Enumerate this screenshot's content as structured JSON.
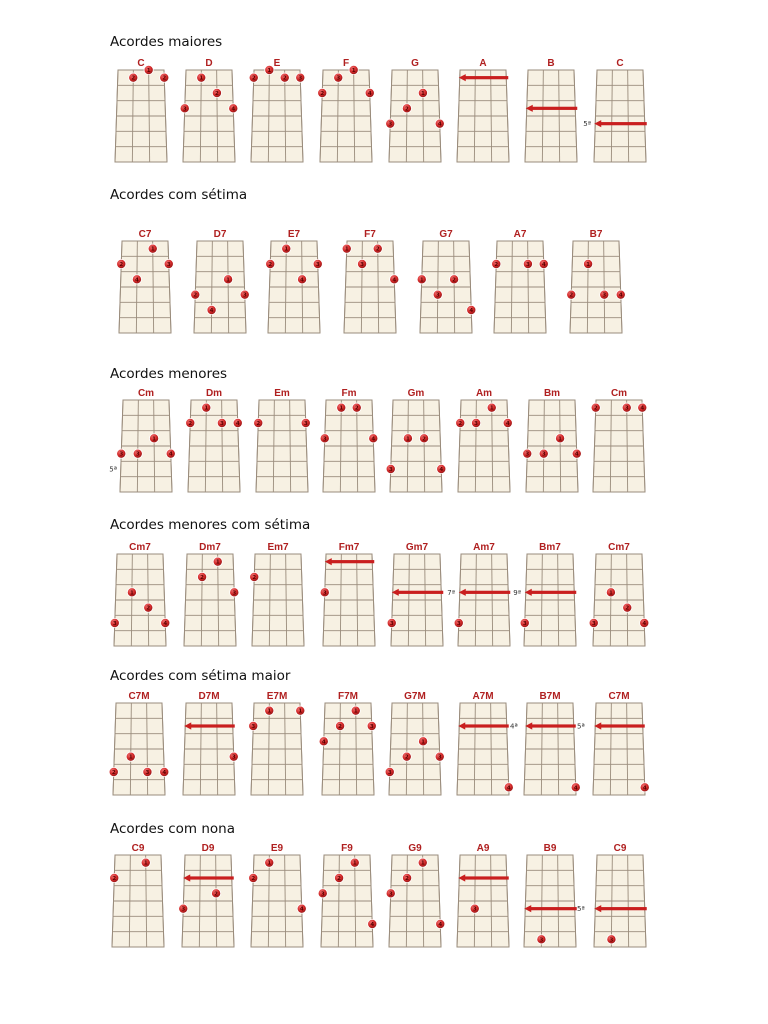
{
  "colors": {
    "board": "#f7f1e3",
    "line": "#9a8c7c",
    "dot": "#d42a2a",
    "dot_dark": "#8f1313",
    "dot_light": "#f07070",
    "bar": "#c91f1f",
    "chord_name": "#b02020",
    "heading": "#111111"
  },
  "icons": {
    "finger": "red-circle",
    "barre": "red-arrow"
  },
  "sections": [
    {
      "title": "Acordes maiores",
      "chords": [
        {
          "name": "C",
          "fingers": [
            {
              "s": 2,
              "f": 0,
              "n": "2"
            },
            {
              "s": 3,
              "f": -1,
              "n": "1"
            },
            {
              "s": 4,
              "f": 0,
              "n": "2"
            }
          ]
        },
        {
          "name": "D",
          "fingers": [
            {
              "s": 2,
              "f": 0,
              "n": "1"
            },
            {
              "s": 3,
              "f": 1,
              "n": "2"
            },
            {
              "s": 1,
              "f": 2,
              "n": "3"
            },
            {
              "s": 4,
              "f": 2,
              "n": "4"
            }
          ]
        },
        {
          "name": "E",
          "fingers": [
            {
              "s": 1,
              "f": 0,
              "n": "2"
            },
            {
              "s": 2,
              "f": -1,
              "n": "1"
            },
            {
              "s": 3,
              "f": 0,
              "n": "2"
            },
            {
              "s": 4,
              "f": 0,
              "n": "3"
            }
          ]
        },
        {
          "name": "F",
          "fingers": [
            {
              "s": 1,
              "f": 1,
              "n": "2"
            },
            {
              "s": 2,
              "f": 0,
              "n": "3"
            },
            {
              "s": 3,
              "f": -1,
              "n": "1"
            },
            {
              "s": 4,
              "f": 1,
              "n": "4"
            }
          ]
        },
        {
          "name": "G",
          "fingers": [
            {
              "s": 3,
              "f": 1,
              "n": "1"
            },
            {
              "s": 2,
              "f": 2,
              "n": "2"
            },
            {
              "s": 1,
              "f": 3,
              "n": "3"
            },
            {
              "s": 4,
              "f": 3,
              "n": "4"
            }
          ]
        },
        {
          "name": "A",
          "bar": 0,
          "fingers": []
        },
        {
          "name": "B",
          "bar": 2,
          "fingers": []
        },
        {
          "name": "C",
          "fret_label": "5ª",
          "bar": 3,
          "fingers": []
        }
      ]
    },
    {
      "title": "Acordes com sétima",
      "chords": [
        {
          "name": "C7",
          "fingers": [
            {
              "s": 3,
              "f": 0,
              "n": "1"
            },
            {
              "s": 1,
              "f": 1,
              "n": "2"
            },
            {
              "s": 4,
              "f": 1,
              "n": "3"
            },
            {
              "s": 2,
              "f": 2,
              "n": "4"
            }
          ]
        },
        {
          "name": "D7",
          "fingers": [
            {
              "s": 3,
              "f": 2,
              "n": "1"
            },
            {
              "s": 1,
              "f": 3,
              "n": "2"
            },
            {
              "s": 4,
              "f": 3,
              "n": "3"
            },
            {
              "s": 2,
              "f": 4,
              "n": "4"
            }
          ]
        },
        {
          "name": "E7",
          "fingers": [
            {
              "s": 2,
              "f": 0,
              "n": "1"
            },
            {
              "s": 1,
              "f": 1,
              "n": "2"
            },
            {
              "s": 4,
              "f": 1,
              "n": "3"
            },
            {
              "s": 3,
              "f": 2,
              "n": "4"
            }
          ]
        },
        {
          "name": "F7",
          "fingers": [
            {
              "s": 1,
              "f": 0,
              "n": "1"
            },
            {
              "s": 3,
              "f": 0,
              "n": "2"
            },
            {
              "s": 2,
              "f": 1,
              "n": "3"
            },
            {
              "s": 4,
              "f": 2,
              "n": "4"
            }
          ]
        },
        {
          "name": "G7",
          "fingers": [
            {
              "s": 1,
              "f": 2,
              "n": "1"
            },
            {
              "s": 3,
              "f": 2,
              "n": "2"
            },
            {
              "s": 2,
              "f": 3,
              "n": "3"
            },
            {
              "s": 4,
              "f": 4,
              "n": "4"
            }
          ]
        },
        {
          "name": "A7",
          "fingers": [
            {
              "s": 1,
              "f": 1,
              "n": "2"
            },
            {
              "s": 3,
              "f": 1,
              "n": "3"
            },
            {
              "s": 4,
              "f": 1,
              "n": "4"
            }
          ]
        },
        {
          "name": "B7",
          "fingers": [
            {
              "s": 2,
              "f": 1,
              "n": "1"
            },
            {
              "s": 1,
              "f": 3,
              "n": "2"
            },
            {
              "s": 3,
              "f": 3,
              "n": "3"
            },
            {
              "s": 4,
              "f": 3,
              "n": "4"
            }
          ]
        }
      ]
    },
    {
      "title": "Acordes menores",
      "chords": [
        {
          "name": "Cm",
          "fret_label": "5ª",
          "fingers": [
            {
              "s": 3,
              "f": 2,
              "n": "1"
            },
            {
              "s": 1,
              "f": 3,
              "n": "3"
            },
            {
              "s": 2,
              "f": 3,
              "n": "3"
            },
            {
              "s": 4,
              "f": 3,
              "n": "4"
            }
          ]
        },
        {
          "name": "Dm",
          "fingers": [
            {
              "s": 2,
              "f": 0,
              "n": "1"
            },
            {
              "s": 1,
              "f": 1,
              "n": "2"
            },
            {
              "s": 3,
              "f": 1,
              "n": "3"
            },
            {
              "s": 4,
              "f": 1,
              "n": "4"
            }
          ]
        },
        {
          "name": "Em",
          "fingers": [
            {
              "s": 1,
              "f": 1,
              "n": "2"
            },
            {
              "s": 4,
              "f": 1,
              "n": "3"
            }
          ]
        },
        {
          "name": "Fm",
          "fingers": [
            {
              "s": 2,
              "f": 0,
              "n": "1"
            },
            {
              "s": 3,
              "f": 0,
              "n": "2"
            },
            {
              "s": 1,
              "f": 2,
              "n": "3"
            },
            {
              "s": 4,
              "f": 2,
              "n": "4"
            }
          ]
        },
        {
          "name": "Gm",
          "fingers": [
            {
              "s": 2,
              "f": 2,
              "n": "1"
            },
            {
              "s": 3,
              "f": 2,
              "n": "2"
            },
            {
              "s": 1,
              "f": 4,
              "n": "3"
            },
            {
              "s": 4,
              "f": 4,
              "n": "4"
            }
          ]
        },
        {
          "name": "Am",
          "fingers": [
            {
              "s": 3,
              "f": 0,
              "n": "1"
            },
            {
              "s": 1,
              "f": 1,
              "n": "2"
            },
            {
              "s": 2,
              "f": 1,
              "n": "3"
            },
            {
              "s": 4,
              "f": 1,
              "n": "4"
            }
          ]
        },
        {
          "name": "Bm",
          "fingers": [
            {
              "s": 3,
              "f": 2,
              "n": "1"
            },
            {
              "s": 1,
              "f": 3,
              "n": "3"
            },
            {
              "s": 2,
              "f": 3,
              "n": "3"
            },
            {
              "s": 4,
              "f": 3,
              "n": "4"
            }
          ]
        },
        {
          "name": "Cm",
          "fingers": [
            {
              "s": 1,
              "f": 0,
              "n": "2"
            },
            {
              "s": 3,
              "f": 0,
              "n": "3"
            },
            {
              "s": 4,
              "f": 0,
              "n": "4"
            }
          ]
        }
      ]
    },
    {
      "title": "Acordes menores com sétima",
      "chords": [
        {
          "name": "Cm7",
          "fingers": [
            {
              "s": 2,
              "f": 2,
              "n": "1"
            },
            {
              "s": 3,
              "f": 3,
              "n": "2"
            },
            {
              "s": 1,
              "f": 4,
              "n": "3"
            },
            {
              "s": 4,
              "f": 4,
              "n": "4"
            }
          ]
        },
        {
          "name": "Dm7",
          "fingers": [
            {
              "s": 3,
              "f": 0,
              "n": "1"
            },
            {
              "s": 2,
              "f": 1,
              "n": "2"
            },
            {
              "s": 4,
              "f": 2,
              "n": "3"
            }
          ]
        },
        {
          "name": "Em7",
          "fingers": [
            {
              "s": 1,
              "f": 1,
              "n": "2"
            }
          ]
        },
        {
          "name": "Fm7",
          "bar": 0,
          "fingers": [
            {
              "s": 1,
              "f": 2,
              "n": "3"
            }
          ]
        },
        {
          "name": "Gm7",
          "bar": 2,
          "fingers": [
            {
              "s": 1,
              "f": 4,
              "n": "3"
            }
          ]
        },
        {
          "name": "Am7",
          "fret_label": "7ª",
          "bar": 2,
          "fingers": [
            {
              "s": 1,
              "f": 4,
              "n": "3"
            }
          ]
        },
        {
          "name": "Bm7",
          "fret_label": "9ª",
          "bar": 2,
          "fingers": [
            {
              "s": 1,
              "f": 4,
              "n": "3"
            }
          ]
        },
        {
          "name": "Cm7",
          "fingers": [
            {
              "s": 2,
              "f": 2,
              "n": "1"
            },
            {
              "s": 3,
              "f": 3,
              "n": "2"
            },
            {
              "s": 1,
              "f": 4,
              "n": "3"
            },
            {
              "s": 4,
              "f": 4,
              "n": "4"
            }
          ]
        }
      ]
    },
    {
      "title": "Acordes com sétima maior",
      "chords": [
        {
          "name": "C7M",
          "fingers": [
            {
              "s": 2,
              "f": 3,
              "n": "1"
            },
            {
              "s": 1,
              "f": 4,
              "n": "2"
            },
            {
              "s": 3,
              "f": 4,
              "n": "3"
            },
            {
              "s": 4,
              "f": 4,
              "n": "4"
            }
          ]
        },
        {
          "name": "D7M",
          "bar": 1,
          "fingers": [
            {
              "s": 4,
              "f": 3,
              "n": "3"
            }
          ]
        },
        {
          "name": "E7M",
          "fingers": [
            {
              "s": 2,
              "f": 0,
              "n": "1"
            },
            {
              "s": 4,
              "f": 0,
              "n": "1"
            },
            {
              "s": 1,
              "f": 1,
              "n": "3"
            }
          ]
        },
        {
          "name": "F7M",
          "fingers": [
            {
              "s": 3,
              "f": 0,
              "n": "1"
            },
            {
              "s": 2,
              "f": 1,
              "n": "2"
            },
            {
              "s": 4,
              "f": 1,
              "n": "3"
            },
            {
              "s": 1,
              "f": 2,
              "n": "4"
            }
          ]
        },
        {
          "name": "G7M",
          "fingers": [
            {
              "s": 3,
              "f": 2,
              "n": "1"
            },
            {
              "s": 2,
              "f": 3,
              "n": "2"
            },
            {
              "s": 4,
              "f": 3,
              "n": "3"
            },
            {
              "s": 1,
              "f": 4,
              "n": "3"
            }
          ]
        },
        {
          "name": "A7M",
          "fret_label": "4ª",
          "fret_label_side": "right",
          "bar": 1,
          "fingers": [
            {
              "s": 4,
              "f": 5,
              "n": "4"
            }
          ]
        },
        {
          "name": "B7M",
          "fret_label": "5ª",
          "fret_label_side": "right",
          "bar": 1,
          "fingers": [
            {
              "s": 4,
              "f": 5,
              "n": "4"
            }
          ]
        },
        {
          "name": "C7M",
          "bar": 1,
          "fingers": [
            {
              "s": 4,
              "f": 5,
              "n": "4"
            }
          ]
        }
      ]
    },
    {
      "title": "Acordes com nona",
      "chords": [
        {
          "name": "C9",
          "fingers": [
            {
              "s": 1,
              "f": 1,
              "n": "2"
            },
            {
              "s": 3,
              "f": 0,
              "n": "1"
            }
          ]
        },
        {
          "name": "D9",
          "bar": 1,
          "fingers": [
            {
              "s": 3,
              "f": 2,
              "n": "2"
            },
            {
              "s": 1,
              "f": 3,
              "n": "3"
            }
          ]
        },
        {
          "name": "E9",
          "fingers": [
            {
              "s": 1,
              "f": 1,
              "n": "2"
            },
            {
              "s": 2,
              "f": 0,
              "n": "1"
            },
            {
              "s": 4,
              "f": 3,
              "n": "4"
            }
          ]
        },
        {
          "name": "F9",
          "fingers": [
            {
              "s": 3,
              "f": 0,
              "n": "1"
            },
            {
              "s": 2,
              "f": 1,
              "n": "2"
            },
            {
              "s": 1,
              "f": 2,
              "n": "3"
            },
            {
              "s": 4,
              "f": 4,
              "n": "4"
            }
          ]
        },
        {
          "name": "G9",
          "fingers": [
            {
              "s": 3,
              "f": 0,
              "n": "1"
            },
            {
              "s": 2,
              "f": 1,
              "n": "2"
            },
            {
              "s": 1,
              "f": 2,
              "n": "3"
            },
            {
              "s": 4,
              "f": 4,
              "n": "4"
            }
          ]
        },
        {
          "name": "A9",
          "bar": 1,
          "fingers": [
            {
              "s": 2,
              "f": 3,
              "n": "3"
            }
          ]
        },
        {
          "name": "B9",
          "fret_label": "5ª",
          "fret_label_side": "right",
          "bar": 3,
          "fingers": [
            {
              "s": 2,
              "f": 5,
              "n": "3"
            }
          ]
        },
        {
          "name": "C9",
          "bar": 3,
          "fingers": [
            {
              "s": 2,
              "f": 5,
              "n": "3"
            }
          ]
        }
      ]
    }
  ]
}
